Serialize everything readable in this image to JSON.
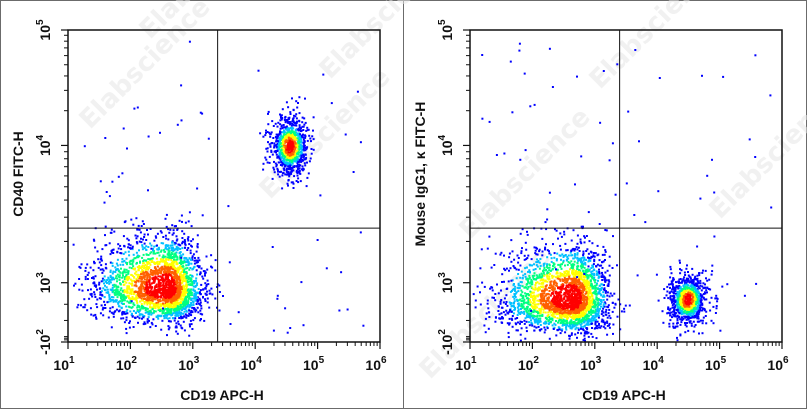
{
  "chart_data": [
    {
      "type": "scatter",
      "subtype": "flow-cytometry-density-dot-plot",
      "xlabel": "CD19 APC-H",
      "ylabel": "CD40 FITC-H",
      "x_scale": "biexponential",
      "y_scale": "biexponential",
      "x_ticks": [
        "10^1",
        "10^2",
        "10^3",
        "10^4",
        "10^5",
        "10^6"
      ],
      "y_ticks": [
        "-10^2",
        "10^3",
        "10^4",
        "10^5"
      ],
      "quadrant_gate": {
        "x": 2500,
        "y": 2500
      },
      "populations": [
        {
          "center": {
            "x": 350,
            "y": 900
          },
          "density": "high"
        },
        {
          "center": {
            "x": 35000,
            "y": 10000
          },
          "density": "medium"
        }
      ],
      "colormap": [
        "#0000ff",
        "#00c0ff",
        "#00ff80",
        "#ffff00",
        "#ff6000",
        "#ff0000"
      ]
    },
    {
      "type": "scatter",
      "subtype": "flow-cytometry-density-dot-plot",
      "xlabel": "CD19 APC-H",
      "ylabel": "Mouse IgG1, κ FITC-H",
      "x_scale": "biexponential",
      "y_scale": "biexponential",
      "x_ticks": [
        "10^1",
        "10^2",
        "10^3",
        "10^4",
        "10^5",
        "10^6"
      ],
      "y_ticks": [
        "-10^2",
        "10^3",
        "10^4",
        "10^5"
      ],
      "quadrant_gate": {
        "x": 2500,
        "y": 2500
      },
      "populations": [
        {
          "center": {
            "x": 400,
            "y": 700
          },
          "density": "high"
        },
        {
          "center": {
            "x": 30000,
            "y": 700
          },
          "density": "medium"
        }
      ],
      "colormap": [
        "#0000ff",
        "#00c0ff",
        "#00ff80",
        "#ffff00",
        "#ff6000",
        "#ff0000"
      ]
    }
  ],
  "watermark": "Elabscience"
}
